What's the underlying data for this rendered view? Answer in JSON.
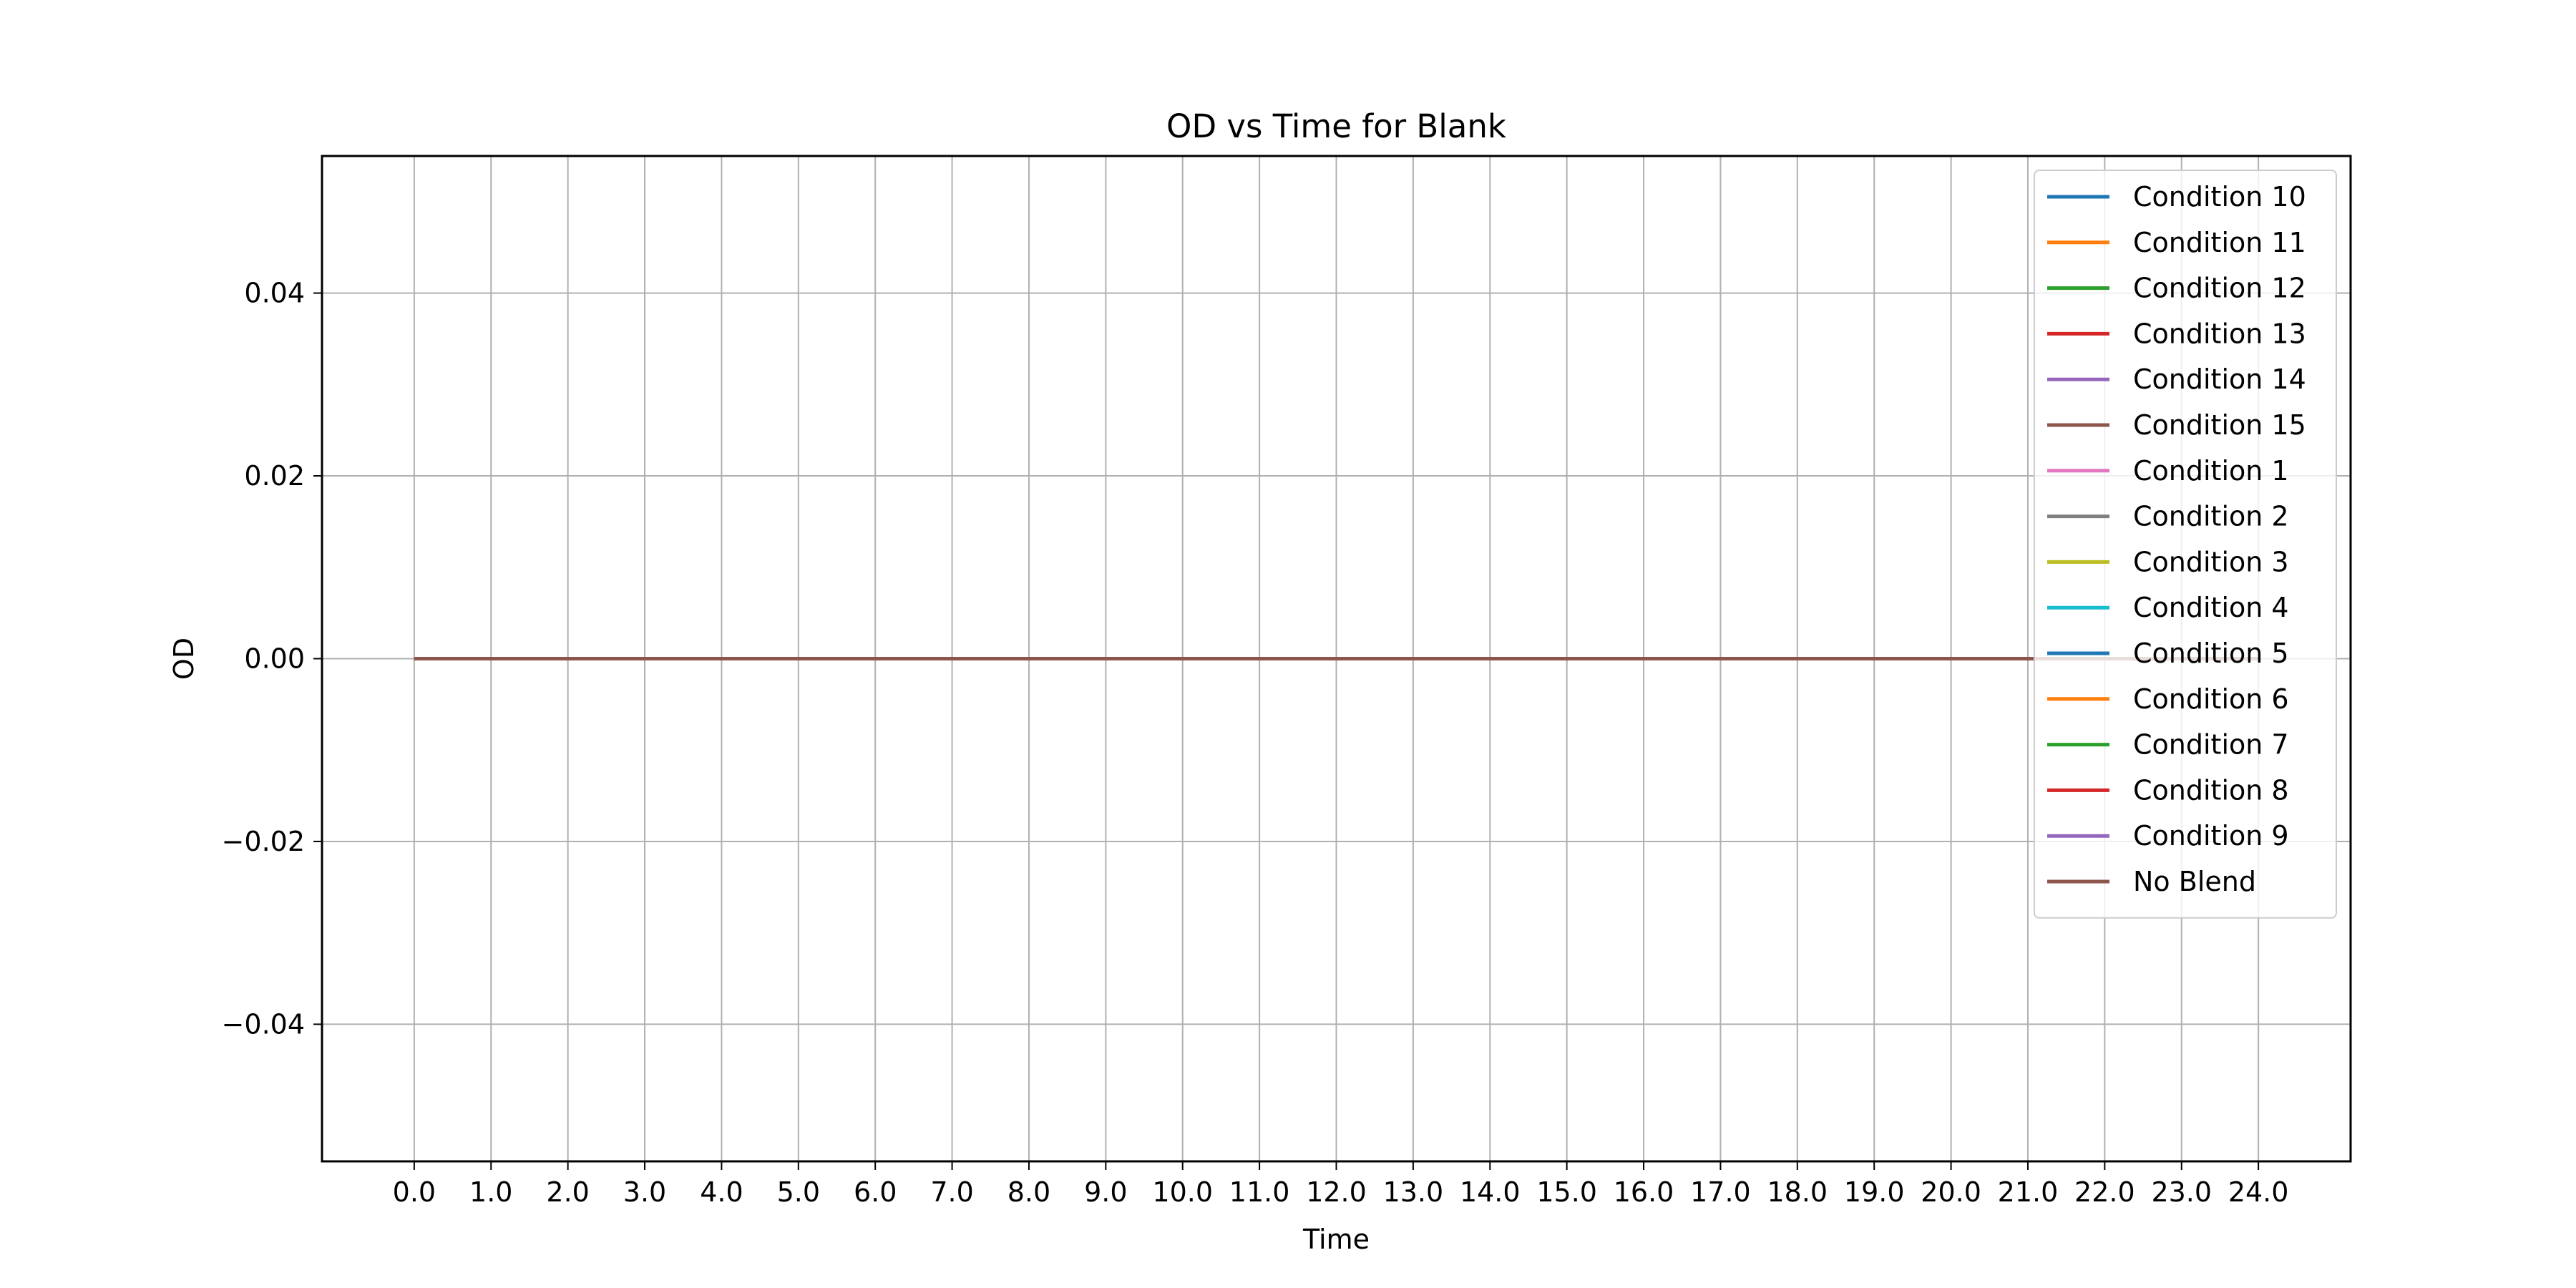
{
  "chart_data": {
    "type": "line",
    "title": "OD vs Time for Blank",
    "xlabel": "Time",
    "ylabel": "OD",
    "xlim": [
      -1.2,
      25.2
    ],
    "ylim": [
      -0.055,
      0.055
    ],
    "grid": true,
    "legend_position": "top-right",
    "x": [
      0.0,
      1.0,
      2.0,
      3.0,
      4.0,
      5.0,
      6.0,
      7.0,
      8.0,
      9.0,
      10.0,
      11.0,
      12.0,
      13.0,
      14.0,
      15.0,
      16.0,
      17.0,
      18.0,
      19.0,
      20.0,
      21.0,
      22.0,
      23.0,
      24.0
    ],
    "x_tick_values": [
      0,
      1,
      2,
      3,
      4,
      5,
      6,
      7,
      8,
      9,
      10,
      11,
      12,
      13,
      14,
      15,
      16,
      17,
      18,
      19,
      20,
      21,
      22,
      23,
      24
    ],
    "x_tick_labels": [
      "0.0",
      "1.0",
      "2.0",
      "3.0",
      "4.0",
      "5.0",
      "6.0",
      "7.0",
      "8.0",
      "9.0",
      "10.0",
      "11.0",
      "12.0",
      "13.0",
      "14.0",
      "15.0",
      "16.0",
      "17.0",
      "18.0",
      "19.0",
      "20.0",
      "21.0",
      "22.0",
      "23.0",
      "24.0"
    ],
    "y_tick_values": [
      -0.04,
      -0.02,
      0.0,
      0.02,
      0.04
    ],
    "y_tick_labels": [
      "−0.04",
      "−0.02",
      "0.00",
      "0.02",
      "0.04"
    ],
    "series": [
      {
        "name": "Condition 10",
        "color": "#1f77b4",
        "values": [
          0,
          0,
          0,
          0,
          0,
          0,
          0,
          0,
          0,
          0,
          0,
          0,
          0,
          0,
          0,
          0,
          0,
          0,
          0,
          0,
          0,
          0,
          0,
          0,
          0
        ]
      },
      {
        "name": "Condition 11",
        "color": "#ff7f0e",
        "values": [
          0,
          0,
          0,
          0,
          0,
          0,
          0,
          0,
          0,
          0,
          0,
          0,
          0,
          0,
          0,
          0,
          0,
          0,
          0,
          0,
          0,
          0,
          0,
          0,
          0
        ]
      },
      {
        "name": "Condition 12",
        "color": "#2ca02c",
        "values": [
          0,
          0,
          0,
          0,
          0,
          0,
          0,
          0,
          0,
          0,
          0,
          0,
          0,
          0,
          0,
          0,
          0,
          0,
          0,
          0,
          0,
          0,
          0,
          0,
          0
        ]
      },
      {
        "name": "Condition 13",
        "color": "#d62728",
        "values": [
          0,
          0,
          0,
          0,
          0,
          0,
          0,
          0,
          0,
          0,
          0,
          0,
          0,
          0,
          0,
          0,
          0,
          0,
          0,
          0,
          0,
          0,
          0,
          0,
          0
        ]
      },
      {
        "name": "Condition 14",
        "color": "#9467bd",
        "values": [
          0,
          0,
          0,
          0,
          0,
          0,
          0,
          0,
          0,
          0,
          0,
          0,
          0,
          0,
          0,
          0,
          0,
          0,
          0,
          0,
          0,
          0,
          0,
          0,
          0
        ]
      },
      {
        "name": "Condition 15",
        "color": "#8c564b",
        "values": [
          0,
          0,
          0,
          0,
          0,
          0,
          0,
          0,
          0,
          0,
          0,
          0,
          0,
          0,
          0,
          0,
          0,
          0,
          0,
          0,
          0,
          0,
          0,
          0,
          0
        ]
      },
      {
        "name": "Condition 1",
        "color": "#e377c2",
        "values": [
          0,
          0,
          0,
          0,
          0,
          0,
          0,
          0,
          0,
          0,
          0,
          0,
          0,
          0,
          0,
          0,
          0,
          0,
          0,
          0,
          0,
          0,
          0,
          0,
          0
        ]
      },
      {
        "name": "Condition 2",
        "color": "#7f7f7f",
        "values": [
          0,
          0,
          0,
          0,
          0,
          0,
          0,
          0,
          0,
          0,
          0,
          0,
          0,
          0,
          0,
          0,
          0,
          0,
          0,
          0,
          0,
          0,
          0,
          0,
          0
        ]
      },
      {
        "name": "Condition 3",
        "color": "#bcbd22",
        "values": [
          0,
          0,
          0,
          0,
          0,
          0,
          0,
          0,
          0,
          0,
          0,
          0,
          0,
          0,
          0,
          0,
          0,
          0,
          0,
          0,
          0,
          0,
          0,
          0,
          0
        ]
      },
      {
        "name": "Condition 4",
        "color": "#17becf",
        "values": [
          0,
          0,
          0,
          0,
          0,
          0,
          0,
          0,
          0,
          0,
          0,
          0,
          0,
          0,
          0,
          0,
          0,
          0,
          0,
          0,
          0,
          0,
          0,
          0,
          0
        ]
      },
      {
        "name": "Condition 5",
        "color": "#1f77b4",
        "values": [
          0,
          0,
          0,
          0,
          0,
          0,
          0,
          0,
          0,
          0,
          0,
          0,
          0,
          0,
          0,
          0,
          0,
          0,
          0,
          0,
          0,
          0,
          0,
          0,
          0
        ]
      },
      {
        "name": "Condition 6",
        "color": "#ff7f0e",
        "values": [
          0,
          0,
          0,
          0,
          0,
          0,
          0,
          0,
          0,
          0,
          0,
          0,
          0,
          0,
          0,
          0,
          0,
          0,
          0,
          0,
          0,
          0,
          0,
          0,
          0
        ]
      },
      {
        "name": "Condition 7",
        "color": "#2ca02c",
        "values": [
          0,
          0,
          0,
          0,
          0,
          0,
          0,
          0,
          0,
          0,
          0,
          0,
          0,
          0,
          0,
          0,
          0,
          0,
          0,
          0,
          0,
          0,
          0,
          0,
          0
        ]
      },
      {
        "name": "Condition 8",
        "color": "#d62728",
        "values": [
          0,
          0,
          0,
          0,
          0,
          0,
          0,
          0,
          0,
          0,
          0,
          0,
          0,
          0,
          0,
          0,
          0,
          0,
          0,
          0,
          0,
          0,
          0,
          0,
          0
        ]
      },
      {
        "name": "Condition 9",
        "color": "#9467bd",
        "values": [
          0,
          0,
          0,
          0,
          0,
          0,
          0,
          0,
          0,
          0,
          0,
          0,
          0,
          0,
          0,
          0,
          0,
          0,
          0,
          0,
          0,
          0,
          0,
          0,
          0
        ]
      },
      {
        "name": "No Blend",
        "color": "#8c564b",
        "values": [
          0,
          0,
          0,
          0,
          0,
          0,
          0,
          0,
          0,
          0,
          0,
          0,
          0,
          0,
          0,
          0,
          0,
          0,
          0,
          0,
          0,
          0,
          0,
          0,
          0
        ]
      }
    ]
  }
}
